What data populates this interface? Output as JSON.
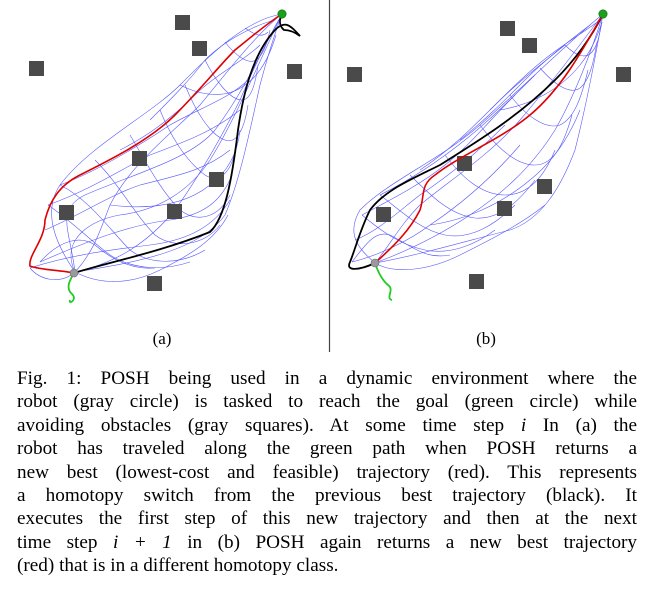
{
  "panels": [
    {
      "label": "(a)"
    },
    {
      "label": "(b)"
    }
  ],
  "caption": {
    "lines": [
      "Fig. 1: POSH being used in a dynamic environment where the",
      "robot (gray circle) is tasked to reach the goal (green circle) while",
      "avoiding obstacles (gray squares). At some time step",
      "robot has traveled along the green path when POSH returns a",
      "new best (lowest-cost and feasible) trajectory (red). This represents",
      "a homotopy switch from the previous best trajectory (black). It",
      "executes the first step of this new trajectory and then at the next",
      "time step",
      "(red) that is in a different homotopy class."
    ],
    "line3_var": "i",
    "line3_tail": " In (a) the",
    "line8_var": "i + 1",
    "line8_tail": " in (b) POSH again returns a new best trajectory"
  },
  "colors": {
    "obstacle": "#4a4a4a",
    "mesh": "#3a3aff",
    "best_trajectory": "#e00000",
    "previous_trajectory": "#000000",
    "robot_path": "#22cc22",
    "goal": "#1aa01a",
    "robot": "#9a9a9a",
    "divider": "#444444"
  }
}
